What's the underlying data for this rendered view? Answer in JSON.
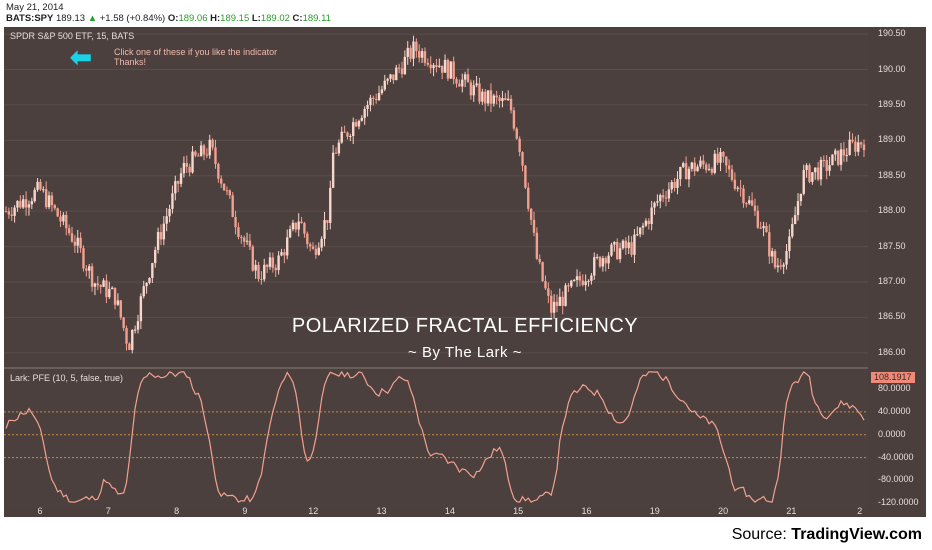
{
  "header": {
    "date": "May 21, 2014",
    "symbol": "BATS:SPY",
    "last": "189.13",
    "arrow_icon": "up-triangle",
    "change": "+1.58 (+0.84%)",
    "o_label": "O:",
    "o_value": "189.06",
    "h_label": "H:",
    "h_value": "189.15",
    "l_label": "L:",
    "l_value": "189.02",
    "c_label": "C:",
    "c_value": "189.11"
  },
  "main_pane": {
    "label": "SPDR S&P 500 ETF, 15, BATS",
    "note_line1": "Click one of these if you like the indicator",
    "note_line2": "Thanks!",
    "title": "POLARIZED FRACTAL EFFICIENCY",
    "subtitle": "~ By The Lark ~"
  },
  "indicator_pane": {
    "label": "Lark: PFE (10, 5, false, true)",
    "current_value": "108.1917"
  },
  "colors": {
    "background": "#4b403e",
    "candle": "#f2a08f",
    "candle_up": "#f7d6cc",
    "arrow": "#19d3e6",
    "pfe_line": "#f2a08f",
    "level_line": "#c98a3a"
  },
  "price_axis": [
    "190.50",
    "190.00",
    "189.50",
    "189.00",
    "188.50",
    "188.00",
    "187.50",
    "187.00",
    "186.50",
    "186.00"
  ],
  "indicator_axis": [
    "80.0000",
    "40.0000",
    "0.0000",
    "-40.0000",
    "-80.0000",
    "-120.0000"
  ],
  "time_axis": [
    "6",
    "7",
    "8",
    "9",
    "12",
    "13",
    "14",
    "15",
    "16",
    "19",
    "20",
    "21",
    "2"
  ],
  "source_prefix": "Source: ",
  "source_name": "TradingView.com",
  "chart_data": {
    "type": "candlestick",
    "ylim": [
      185.8,
      190.6
    ],
    "close_path": [
      {
        "x": 0,
        "y": 188.0
      },
      {
        "x": 0.5,
        "y": 188.3
      },
      {
        "x": 1,
        "y": 187.6
      },
      {
        "x": 1.3,
        "y": 187.0
      },
      {
        "x": 1.6,
        "y": 186.8
      },
      {
        "x": 1.8,
        "y": 186.1
      },
      {
        "x": 2.2,
        "y": 187.5
      },
      {
        "x": 2.6,
        "y": 188.6
      },
      {
        "x": 3.0,
        "y": 188.9
      },
      {
        "x": 3.4,
        "y": 187.8
      },
      {
        "x": 3.7,
        "y": 187.1
      },
      {
        "x": 4.0,
        "y": 187.3
      },
      {
        "x": 4.3,
        "y": 187.9
      },
      {
        "x": 4.5,
        "y": 187.4
      },
      {
        "x": 4.75,
        "y": 188.0
      },
      {
        "x": 4.8,
        "y": 188.8
      },
      {
        "x": 5.2,
        "y": 189.4
      },
      {
        "x": 5.6,
        "y": 189.8
      },
      {
        "x": 6.0,
        "y": 190.3
      },
      {
        "x": 6.5,
        "y": 190.0
      },
      {
        "x": 7.0,
        "y": 189.6
      },
      {
        "x": 7.4,
        "y": 189.5
      },
      {
        "x": 7.55,
        "y": 188.9
      },
      {
        "x": 7.6,
        "y": 188.6
      },
      {
        "x": 7.8,
        "y": 187.3
      },
      {
        "x": 8.0,
        "y": 186.6
      },
      {
        "x": 8.4,
        "y": 187.0
      },
      {
        "x": 8.8,
        "y": 187.4
      },
      {
        "x": 9.2,
        "y": 187.5
      },
      {
        "x": 9.6,
        "y": 188.2
      },
      {
        "x": 10.0,
        "y": 188.6
      },
      {
        "x": 10.5,
        "y": 188.7
      },
      {
        "x": 10.8,
        "y": 188.3
      },
      {
        "x": 11.1,
        "y": 187.8
      },
      {
        "x": 11.3,
        "y": 187.2
      },
      {
        "x": 11.5,
        "y": 187.5
      },
      {
        "x": 11.7,
        "y": 188.5
      },
      {
        "x": 12.0,
        "y": 188.6
      },
      {
        "x": 12.4,
        "y": 188.9
      },
      {
        "x": 12.6,
        "y": 189.0
      }
    ],
    "pfe_levels": [
      40,
      0,
      -40
    ],
    "pfe_last": 108.1917
  }
}
